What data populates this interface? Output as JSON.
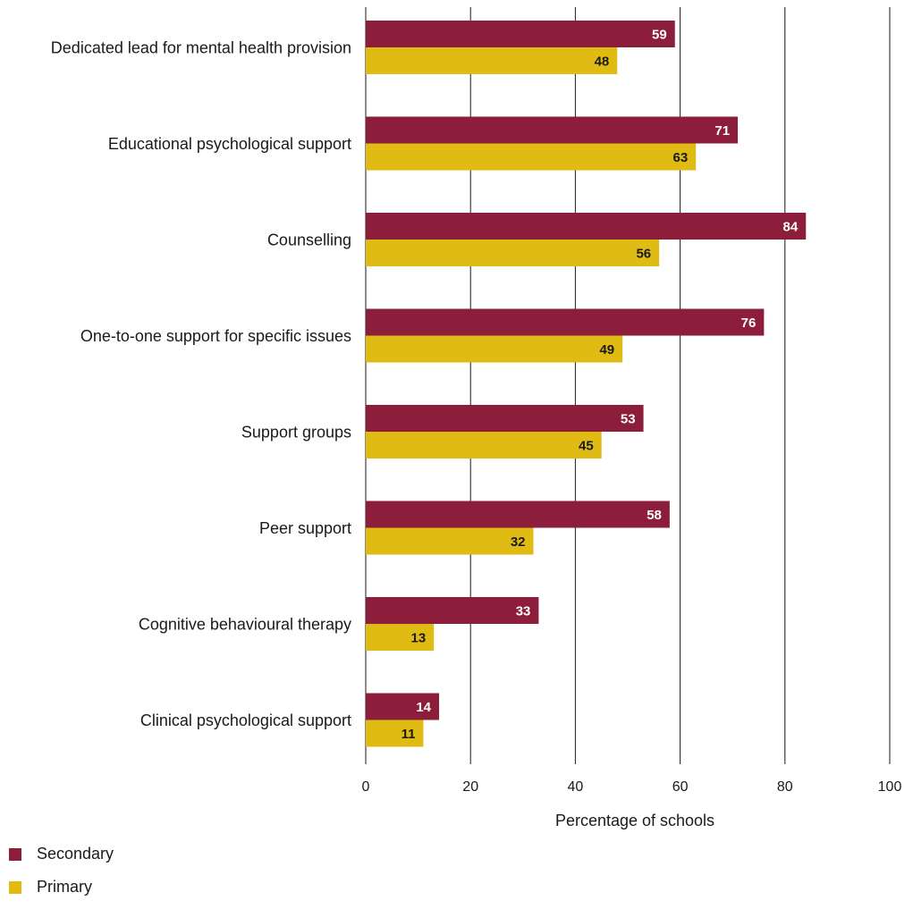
{
  "chart_data": {
    "type": "bar",
    "orientation": "horizontal",
    "categories": [
      "Dedicated lead for mental health provision",
      "Educational psychological support",
      "Counselling",
      "One-to-one support for specific issues",
      "Support groups",
      "Peer support",
      "Cognitive behavioural therapy",
      "Clinical psychological support"
    ],
    "series": [
      {
        "name": "Secondary",
        "color": "#8c1d3b",
        "label_color": "#ffffff",
        "values": [
          59,
          71,
          84,
          76,
          53,
          58,
          33,
          14
        ]
      },
      {
        "name": "Primary",
        "color": "#e0bb13",
        "label_color": "#1a1a1a",
        "values": [
          48,
          63,
          56,
          49,
          45,
          32,
          13,
          11
        ]
      }
    ],
    "xlabel": "Percentage of schools",
    "ylabel": "",
    "xlim": [
      0,
      100
    ],
    "xticks": [
      0,
      20,
      40,
      60,
      80,
      100
    ],
    "grid": true,
    "gridline_color": "#1a1a1a",
    "legend_position": "bottom-left"
  }
}
